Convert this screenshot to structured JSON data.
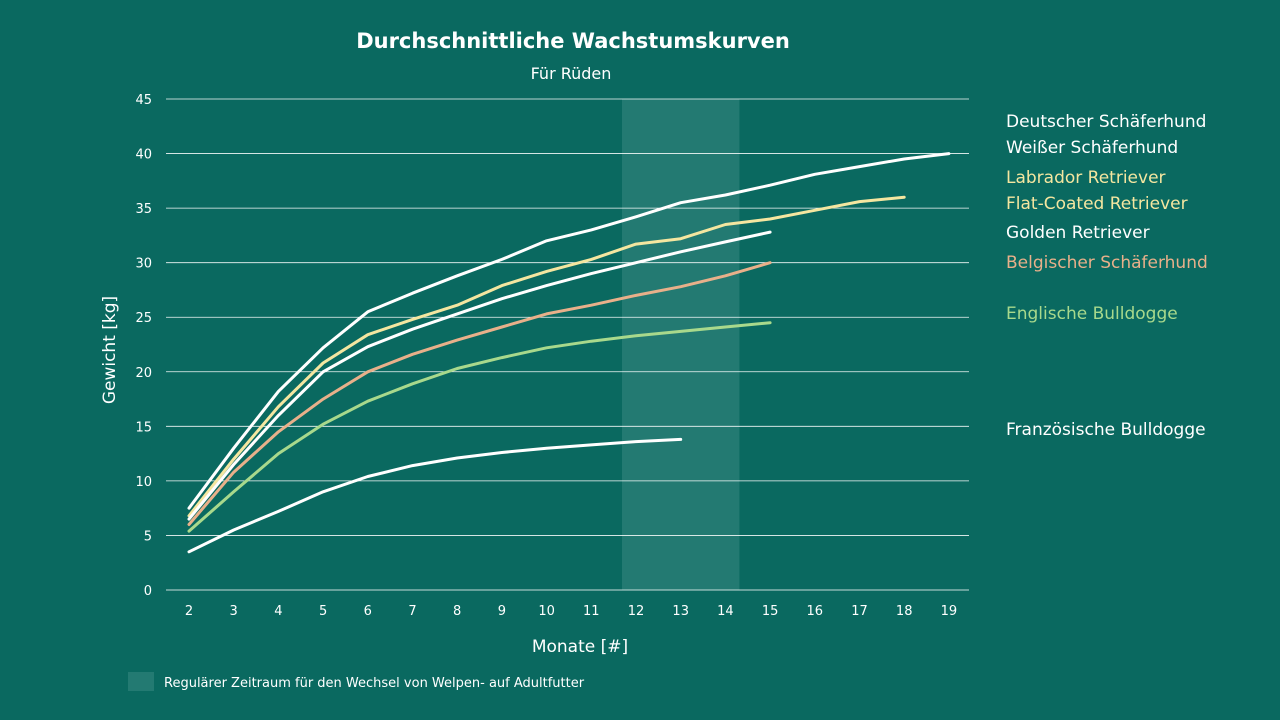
{
  "chart_data": {
    "type": "line",
    "title": "Durchschnittliche Wachstumskurven",
    "subtitle": "Für Rüden",
    "xlabel": "Monate [#]",
    "ylabel": "Gewicht [kg]",
    "ylim": [
      0,
      45
    ],
    "xlim": [
      2,
      19
    ],
    "grid": true,
    "legend_placement": "right",
    "x_ticks": [
      "2",
      "3",
      "4",
      "5",
      "6",
      "7",
      "8",
      "9",
      "10",
      "11",
      "12",
      "13",
      "14",
      "15",
      "16",
      "17",
      "18",
      "19"
    ],
    "y_ticks": [
      "0",
      "5",
      "10",
      "15",
      "20",
      "25",
      "30",
      "35",
      "40",
      "45"
    ],
    "highlight_band": {
      "x_range": [
        12,
        14
      ],
      "label": "Regulärer Zeitraum für den Wechsel von Welpen- auf Adultfutter",
      "color": "#237a72"
    },
    "legend": [
      {
        "label": "Deutscher Schäferhund",
        "color": "#ffffff"
      },
      {
        "label": "Weißer Schäferhund",
        "color": "#ffffff"
      },
      {
        "label": "Labrador Retriever",
        "color": "#f4e6a0"
      },
      {
        "label": "Flat-Coated Retriever",
        "color": "#f4e6a0"
      },
      {
        "label": "Golden Retriever",
        "color": "#ffffff"
      },
      {
        "label": "Belgischer Schäferhund",
        "color": "#e8b08a"
      },
      {
        "label": "Englische Bulldogge",
        "color": "#a8d98c"
      },
      {
        "label": "Französische Bulldogge",
        "color": "#ffffff"
      }
    ],
    "series": [
      {
        "color": "#ffffff",
        "x": [
          2,
          3,
          4,
          5,
          6,
          7,
          8,
          9,
          10,
          11,
          12,
          13,
          14,
          15,
          16,
          17,
          18,
          19
        ],
        "values": [
          7.5,
          13,
          18.2,
          22.2,
          25.5,
          27.2,
          28.8,
          30.3,
          32,
          33,
          34.2,
          35.5,
          36.2,
          37.1,
          38.1,
          38.8,
          39.5,
          40
        ]
      },
      {
        "color": "#f4e6a0",
        "x": [
          2,
          3,
          4,
          5,
          6,
          7,
          8,
          9,
          10,
          11,
          12,
          13,
          14,
          15,
          16,
          17,
          18
        ],
        "values": [
          6.8,
          12,
          16.8,
          20.8,
          23.4,
          24.8,
          26.1,
          27.9,
          29.2,
          30.3,
          31.7,
          32.2,
          33.5,
          34,
          34.8,
          35.6,
          36
        ]
      },
      {
        "color": "#ffffff",
        "x": [
          2,
          3,
          4,
          5,
          6,
          7,
          8,
          9,
          10,
          11,
          12,
          13,
          14,
          15
        ],
        "values": [
          6.5,
          11.5,
          16,
          20,
          22.3,
          23.9,
          25.3,
          26.7,
          27.9,
          29,
          30,
          31,
          31.9,
          32.8
        ]
      },
      {
        "color": "#e8b08a",
        "x": [
          2,
          3,
          4,
          5,
          6,
          7,
          8,
          9,
          10,
          11,
          12,
          13,
          14,
          15
        ],
        "values": [
          6,
          10.8,
          14.5,
          17.5,
          20,
          21.6,
          22.9,
          24.1,
          25.3,
          26.1,
          27,
          27.8,
          28.8,
          30
        ]
      },
      {
        "color": "#a8d98c",
        "x": [
          2,
          3,
          4,
          5,
          6,
          7,
          8,
          9,
          10,
          11,
          12,
          13,
          14,
          15
        ],
        "values": [
          5.4,
          9,
          12.5,
          15.2,
          17.3,
          18.9,
          20.3,
          21.3,
          22.2,
          22.8,
          23.3,
          23.7,
          24.1,
          24.5
        ]
      },
      {
        "color": "#ffffff",
        "x": [
          2,
          3,
          4,
          5,
          6,
          7,
          8,
          9,
          10,
          11,
          12,
          13
        ],
        "values": [
          3.5,
          5.5,
          7.2,
          9,
          10.4,
          11.4,
          12.1,
          12.6,
          13,
          13.3,
          13.6,
          13.8
        ]
      }
    ]
  }
}
